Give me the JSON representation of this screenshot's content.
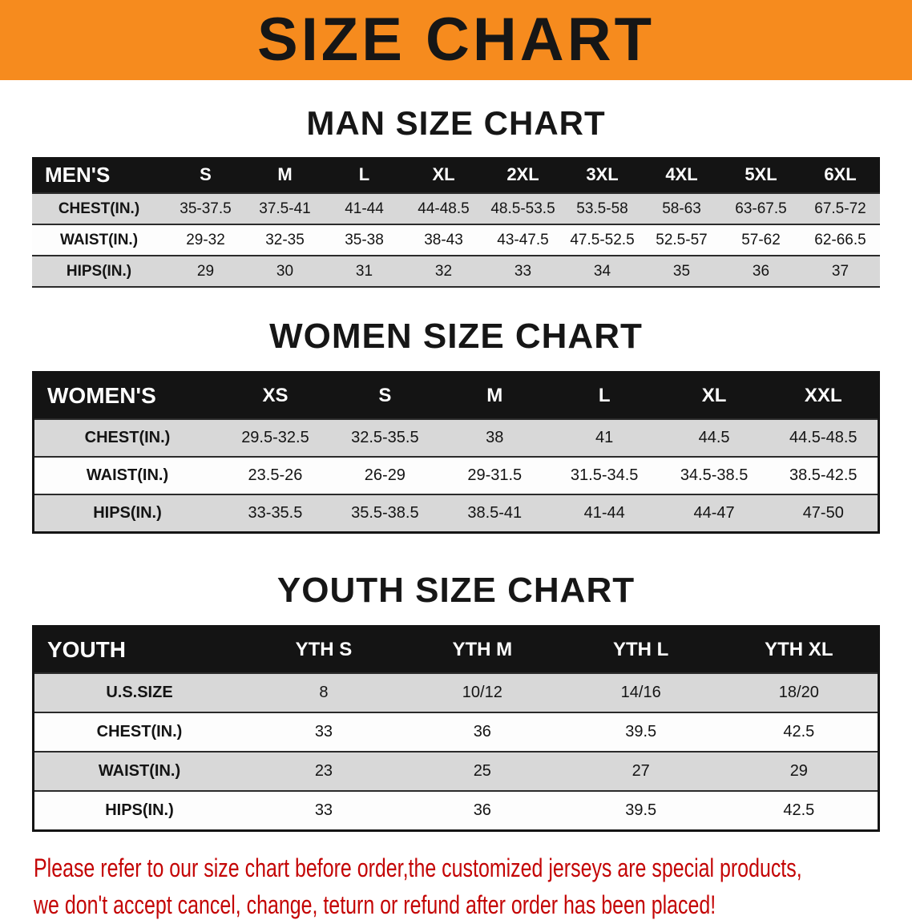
{
  "banner": {
    "title": "SIZE CHART"
  },
  "colors": {
    "banner_bg": "#f68b1e",
    "header_bg": "#141414",
    "stripe": "#d8d8d8",
    "footer_red": "#c40505"
  },
  "sections": {
    "men": {
      "heading": "MAN SIZE CHART",
      "table": {
        "header": [
          "MEN'S",
          "S",
          "M",
          "L",
          "XL",
          "2XL",
          "3XL",
          "4XL",
          "5XL",
          "6XL"
        ],
        "rows": [
          [
            "CHEST(IN.)",
            "35-37.5",
            "37.5-41",
            "41-44",
            "44-48.5",
            "48.5-53.5",
            "53.5-58",
            "58-63",
            "63-67.5",
            "67.5-72"
          ],
          [
            "WAIST(IN.)",
            "29-32",
            "32-35",
            "35-38",
            "38-43",
            "43-47.5",
            "47.5-52.5",
            "52.5-57",
            "57-62",
            "62-66.5"
          ],
          [
            "HIPS(IN.)",
            "29",
            "30",
            "31",
            "32",
            "33",
            "34",
            "35",
            "36",
            "37"
          ]
        ]
      }
    },
    "women": {
      "heading": "WOMEN SIZE CHART",
      "table": {
        "header": [
          "WOMEN'S",
          "XS",
          "S",
          "M",
          "L",
          "XL",
          "XXL"
        ],
        "rows": [
          [
            "CHEST(IN.)",
            "29.5-32.5",
            "32.5-35.5",
            "38",
            "41",
            "44.5",
            "44.5-48.5"
          ],
          [
            "WAIST(IN.)",
            "23.5-26",
            "26-29",
            "29-31.5",
            "31.5-34.5",
            "34.5-38.5",
            "38.5-42.5"
          ],
          [
            "HIPS(IN.)",
            "33-35.5",
            "35.5-38.5",
            "38.5-41",
            "41-44",
            "44-47",
            "47-50"
          ]
        ]
      }
    },
    "youth": {
      "heading": "YOUTH SIZE CHART",
      "table": {
        "header": [
          "YOUTH",
          "YTH S",
          "YTH M",
          "YTH L",
          "YTH XL"
        ],
        "rows": [
          [
            "U.S.SIZE",
            "8",
            "10/12",
            "14/16",
            "18/20"
          ],
          [
            "CHEST(IN.)",
            "33",
            "36",
            "39.5",
            "42.5"
          ],
          [
            "WAIST(IN.)",
            "23",
            "25",
            "27",
            "29"
          ],
          [
            "HIPS(IN.)",
            "33",
            "36",
            "39.5",
            "42.5"
          ]
        ]
      }
    }
  },
  "footer": {
    "line1": "Please refer to our size chart before order,the customized jerseys are special products,",
    "line2": "we don't accept cancel, change, teturn or refund after order has been placed!"
  }
}
